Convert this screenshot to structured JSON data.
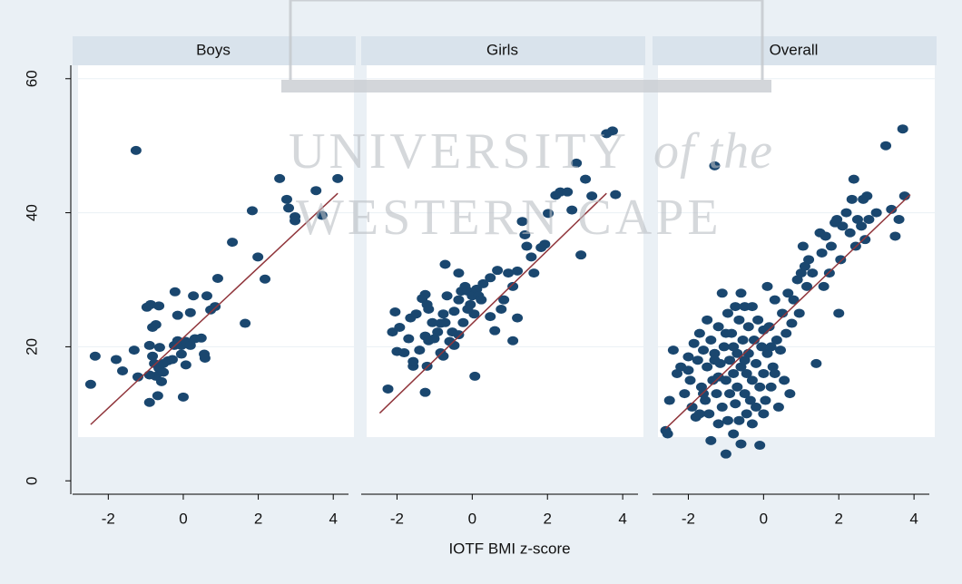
{
  "watermark": [
    "UNIVERSITY",
    "of the",
    "WESTERN CAPE"
  ],
  "chart_data": [
    {
      "type": "scatter",
      "title": "Boys",
      "xlim": [
        -3.0,
        4.6
      ],
      "xticks": [
        -2,
        0,
        2,
        4
      ],
      "ylim": [
        -2,
        62
      ],
      "yticks": [
        0,
        20,
        40,
        60
      ],
      "color": "#1a476f",
      "fit_color": "#90353b",
      "x": [
        -1.26,
        -2.35,
        -2.47,
        -1.62,
        -1.79,
        -1.31,
        -0.9,
        -0.82,
        -0.73,
        -0.97,
        -0.87,
        -0.65,
        -0.63,
        -0.82,
        -0.77,
        -0.65,
        -0.53,
        -0.73,
        -0.53,
        -0.41,
        -0.29,
        -0.58,
        -0.68,
        -0.9,
        -1.21,
        -0.9,
        -0.24,
        -0.15,
        -0.05,
        0.07,
        0.19,
        0.31,
        -0.05,
        0.07,
        0.0,
        -0.15,
        -0.22,
        0.27,
        0.63,
        0.73,
        0.19,
        0.48,
        0.56,
        0.58,
        0.85,
        0.92,
        1.31,
        1.65,
        1.84,
        1.99,
        2.18,
        2.57,
        2.76,
        2.81,
        2.98,
        2.98,
        3.54,
        3.7,
        4.12
      ],
      "values": [
        49.3,
        18.6,
        14.4,
        16.4,
        18.1,
        19.5,
        20.2,
        22.9,
        23.3,
        25.9,
        26.3,
        26.1,
        19.9,
        18.6,
        17.5,
        16.8,
        17.5,
        15.6,
        16.2,
        17.9,
        18.1,
        14.8,
        12.7,
        11.7,
        15.5,
        15.8,
        20.2,
        20.9,
        20.2,
        20.8,
        20.2,
        21.2,
        18.9,
        17.3,
        12.5,
        24.7,
        28.2,
        27.6,
        27.6,
        25.5,
        25.1,
        21.3,
        18.9,
        18.3,
        26.0,
        30.2,
        35.6,
        23.5,
        40.3,
        33.4,
        30.1,
        45.1,
        42.0,
        40.7,
        39.4,
        38.8,
        43.3,
        39.6,
        45.1
      ],
      "fit": {
        "x": [
          -2.47,
          4.12
        ],
        "values": [
          8.4,
          42.9
        ]
      }
    },
    {
      "type": "scatter",
      "title": "Girls",
      "xlabel": "IOTF BMI z-score",
      "xlim": [
        -3.0,
        4.6
      ],
      "xticks": [
        -2,
        0,
        2,
        4
      ],
      "ylim": [
        -2,
        62
      ],
      "color": "#1a476f",
      "fit_color": "#90353b",
      "x": [
        -2.24,
        -2.05,
        -1.93,
        -2.12,
        -2.0,
        -1.81,
        -1.69,
        -1.64,
        -1.49,
        -1.33,
        -1.25,
        -1.2,
        -1.16,
        -1.06,
        -1.25,
        -1.16,
        -1.01,
        -0.92,
        -0.84,
        -0.77,
        -0.67,
        -0.72,
        -0.48,
        -0.36,
        -0.29,
        -0.19,
        -0.12,
        0.0,
        0.12,
        0.17,
        0.24,
        -0.05,
        0.05,
        -0.24,
        -0.36,
        -0.48,
        -0.6,
        -0.84,
        -1.2,
        -1.57,
        -1.25,
        -1.57,
        -1.4,
        -0.77,
        -0.53,
        -0.12,
        0.29,
        0.48,
        0.67,
        0.96,
        1.2,
        0.48,
        0.77,
        0.84,
        1.08,
        1.2,
        1.33,
        1.4,
        1.45,
        1.57,
        1.64,
        1.83,
        1.93,
        2.02,
        2.22,
        2.34,
        2.53,
        2.65,
        2.77,
        2.89,
        3.01,
        3.18,
        3.57,
        3.73,
        3.81,
        0.07,
        1.08,
        0.6,
        -0.72,
        -0.36
      ],
      "values": [
        13.7,
        25.2,
        22.9,
        22.2,
        19.3,
        19.1,
        21.2,
        24.3,
        24.9,
        27.2,
        27.8,
        26.3,
        25.6,
        23.6,
        21.6,
        20.9,
        21.2,
        22.2,
        23.5,
        24.9,
        27.6,
        23.6,
        25.3,
        27.0,
        28.3,
        29.0,
        28.3,
        27.6,
        28.6,
        27.6,
        27.0,
        26.3,
        24.9,
        23.6,
        21.8,
        20.2,
        20.8,
        19.1,
        17.1,
        17.1,
        13.2,
        17.8,
        19.5,
        18.6,
        22.2,
        25.6,
        29.4,
        30.3,
        31.4,
        31.0,
        31.3,
        24.5,
        25.6,
        27.0,
        29.0,
        24.3,
        38.7,
        36.7,
        35.0,
        33.4,
        31.0,
        34.8,
        35.3,
        39.9,
        42.6,
        43.1,
        43.1,
        40.4,
        47.4,
        33.7,
        45.0,
        42.5,
        51.8,
        52.2,
        42.7,
        15.6,
        20.9,
        22.4,
        32.3,
        31.0
      ],
      "fit": {
        "x": [
          -2.46,
          3.57
        ],
        "values": [
          10.1,
          42.9
        ]
      }
    },
    {
      "type": "scatter",
      "title": "Overall",
      "xlim": [
        -3.0,
        4.6
      ],
      "xticks": [
        -2,
        0,
        2,
        4
      ],
      "ylim": [
        -2,
        62
      ],
      "color": "#1a476f",
      "fit_color": "#90353b",
      "x": [
        -2.6,
        -2.55,
        -2.5,
        -2.4,
        -2.3,
        -2.2,
        -2.1,
        -2.0,
        -1.95,
        -1.9,
        -1.85,
        -1.8,
        -1.75,
        -1.7,
        -1.65,
        -1.6,
        -1.55,
        -1.5,
        -1.5,
        -1.45,
        -1.4,
        -1.4,
        -1.35,
        -1.3,
        -1.3,
        -1.25,
        -1.2,
        -1.2,
        -1.15,
        -1.1,
        -1.1,
        -1.05,
        -1.0,
        -1.0,
        -0.95,
        -0.95,
        -0.9,
        -0.9,
        -0.85,
        -0.8,
        -0.8,
        -0.75,
        -0.75,
        -0.7,
        -0.7,
        -0.65,
        -0.65,
        -0.6,
        -0.6,
        -0.55,
        -0.5,
        -0.5,
        -0.45,
        -0.45,
        -0.4,
        -0.4,
        -0.35,
        -0.3,
        -0.3,
        -0.25,
        -0.2,
        -0.2,
        -0.15,
        -0.1,
        -0.1,
        -0.05,
        0,
        0,
        0.05,
        0.1,
        0.1,
        0.15,
        0.2,
        0.25,
        0.3,
        0.35,
        0.4,
        0.45,
        0.5,
        0.55,
        0.6,
        0.65,
        0.7,
        0.75,
        0.8,
        0.9,
        0.95,
        1.0,
        1.05,
        1.1,
        1.15,
        1.2,
        1.3,
        1.4,
        1.5,
        1.55,
        1.6,
        1.65,
        1.75,
        1.8,
        1.9,
        1.95,
        2.0,
        2.05,
        2.1,
        2.2,
        2.3,
        2.35,
        2.4,
        2.45,
        2.5,
        2.6,
        2.65,
        2.7,
        2.75,
        2.8,
        3.0,
        3.25,
        3.4,
        3.5,
        3.6,
        3.7,
        3.75,
        -2.0,
        -1.7,
        -1.3,
        -0.6,
        -0.3,
        0.2,
        -1.0,
        -0.8,
        -1.2,
        -0.5,
        0,
        -1.6,
        0.3
      ],
      "values": [
        7.5,
        7.0,
        12,
        19.5,
        16,
        17,
        13,
        18.5,
        15,
        11,
        20.5,
        9.5,
        18,
        22,
        14,
        19.5,
        12,
        24,
        17,
        10,
        6,
        21,
        15,
        47,
        19,
        13,
        23,
        8.5,
        17.5,
        28,
        11,
        20,
        4,
        15,
        25,
        9,
        18,
        13,
        22,
        16,
        7,
        26,
        11.5,
        19,
        14,
        24,
        9,
        17,
        5.5,
        21,
        13,
        26,
        16,
        10,
        23,
        19,
        12,
        15,
        8.5,
        21,
        17.5,
        11,
        24,
        14,
        5.3,
        20,
        22.5,
        16,
        12,
        29,
        19,
        23,
        14,
        17,
        27,
        21,
        11,
        19.5,
        25,
        15,
        22,
        28,
        13,
        23.5,
        27,
        30,
        25,
        31,
        35,
        32,
        29,
        33,
        31,
        17.5,
        37,
        34,
        29,
        36.5,
        31,
        35,
        38.5,
        39,
        25,
        33,
        38,
        40,
        37,
        42,
        45,
        35,
        39,
        38,
        42,
        36,
        42.5,
        39,
        40,
        50,
        40.5,
        36.5,
        39,
        52.5,
        42.5,
        16.5,
        10,
        18,
        28,
        26,
        20,
        22,
        20,
        15.5,
        18,
        10,
        13,
        16
      ],
      "fit": {
        "x": [
          -2.6,
          3.9
        ],
        "values": [
          7.8,
          42.7
        ]
      }
    }
  ]
}
